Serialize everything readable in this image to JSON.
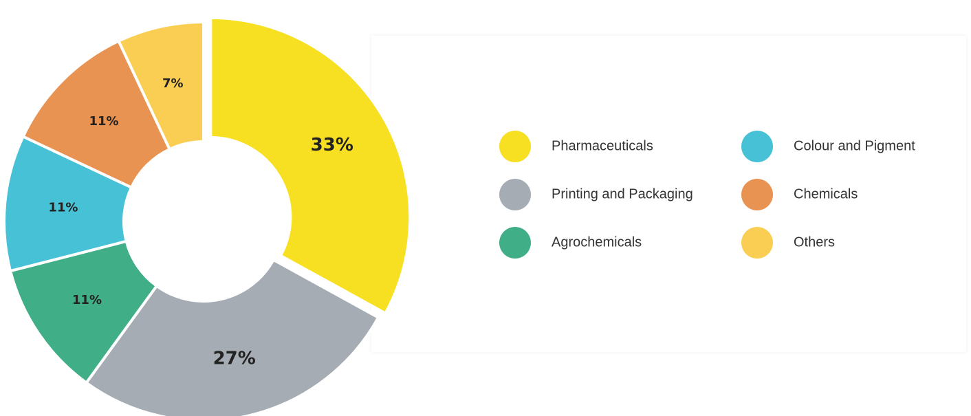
{
  "chart_data": {
    "type": "donut",
    "categories": [
      "Pharmaceuticals",
      "Printing and Packaging",
      "Agrochemicals",
      "Colour and Pigment",
      "Chemicals",
      "Others"
    ],
    "values": [
      33,
      27,
      11,
      11,
      11,
      7
    ],
    "value_labels": [
      "33%",
      "27%",
      "11%",
      "11%",
      "11%",
      "7%"
    ],
    "colors": [
      "#f7df22",
      "#a6acb3",
      "#40ae86",
      "#47c1d6",
      "#e89352",
      "#f9ce52"
    ],
    "exploded": [
      0
    ]
  }
}
